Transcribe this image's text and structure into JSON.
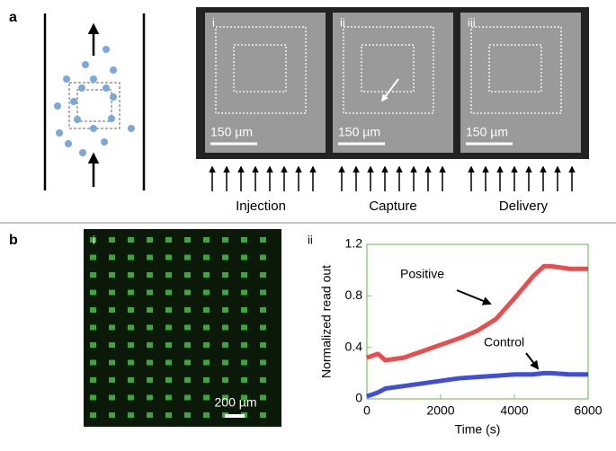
{
  "panel_a": {
    "label": "a",
    "images": [
      {
        "label": "i",
        "scale_bar": "150 µm"
      },
      {
        "label": "ii",
        "scale_bar": "150 µm"
      },
      {
        "label": "iii",
        "scale_bar": "150 µm"
      }
    ],
    "stages": [
      "Injection",
      "Capture",
      "Delivery"
    ]
  },
  "panel_b": {
    "label": "b",
    "image": {
      "label": "i",
      "scale_bar": "200 µm"
    }
  },
  "chart_data": {
    "type": "line",
    "panel_label": "ii",
    "x": [
      0,
      300,
      500,
      1000,
      1500,
      2000,
      2500,
      3000,
      3500,
      4000,
      4500,
      4800,
      5000,
      5500,
      6000
    ],
    "series": [
      {
        "name": "Positive",
        "color": "#e03030",
        "values": [
          0.32,
          0.35,
          0.3,
          0.32,
          0.37,
          0.42,
          0.47,
          0.53,
          0.62,
          0.78,
          0.95,
          1.03,
          1.03,
          1.01,
          1.01
        ]
      },
      {
        "name": "Control",
        "color": "#2030d0",
        "values": [
          0.02,
          0.05,
          0.08,
          0.1,
          0.12,
          0.14,
          0.16,
          0.17,
          0.18,
          0.19,
          0.19,
          0.2,
          0.2,
          0.19,
          0.19
        ]
      }
    ],
    "xlabel": "Time (s)",
    "ylabel": "Normalized read out",
    "xlim": [
      0,
      6000
    ],
    "ylim": [
      0,
      1.2
    ],
    "xticks": [
      0,
      2000,
      4000,
      6000
    ],
    "yticks": [
      0,
      0.4,
      0.8,
      1.2
    ],
    "frame_color": "#80c060"
  }
}
